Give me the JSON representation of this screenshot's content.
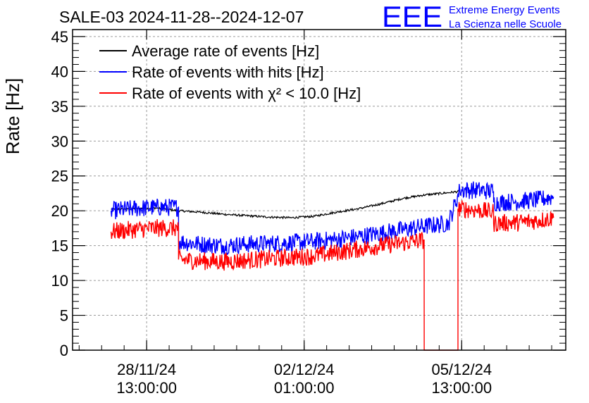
{
  "chart_data": {
    "type": "line",
    "title": "SALE-03 2024-11-28--2024-12-07",
    "ylabel": "Rate [Hz]",
    "xlabel": "",
    "ylim": [
      0,
      46
    ],
    "y_ticks": [
      0,
      5,
      10,
      15,
      20,
      25,
      30,
      35,
      40,
      45
    ],
    "x_ticks": [
      {
        "date": "28/11/24",
        "time": "13:00:00",
        "t": "2024-11-28T13:00:00"
      },
      {
        "date": "02/12/24",
        "time": "01:00:00",
        "t": "2024-12-02T01:00:00"
      },
      {
        "date": "05/12/24",
        "time": "13:00:00",
        "t": "2024-12-05T13:00:00"
      }
    ],
    "xlim": [
      "2024-11-26T21:30:00",
      "2024-12-07T20:30:00"
    ],
    "grid": true,
    "legend_position": "top-left",
    "series": [
      {
        "name": "Average rate of events [Hz]",
        "color": "#000000",
        "x": [
          "2024-11-27T18:00:00",
          "2024-11-28T06:00:00",
          "2024-11-28T18:00:00",
          "2024-11-29T06:00:00",
          "2024-11-29T18:00:00",
          "2024-11-30T06:00:00",
          "2024-11-30T18:00:00",
          "2024-12-01T06:00:00",
          "2024-12-01T18:00:00",
          "2024-12-02T06:00:00",
          "2024-12-02T18:00:00",
          "2024-12-03T06:00:00",
          "2024-12-03T18:00:00",
          "2024-12-04T06:00:00",
          "2024-12-04T18:00:00",
          "2024-12-05T06:00:00",
          "2024-12-05T12:00:00"
        ],
        "values": [
          20.2,
          20.3,
          20.4,
          20.0,
          19.8,
          19.5,
          19.3,
          19.1,
          19.0,
          19.2,
          19.8,
          20.3,
          21.0,
          21.8,
          22.3,
          22.6,
          22.8
        ]
      },
      {
        "name": "Rate of events with hits [Hz]",
        "color": "#0000ff",
        "x": [
          "2024-11-27T18:00:00",
          "2024-11-28T06:00:00",
          "2024-11-28T18:00:00",
          "2024-11-29T06:00:00",
          "2024-11-29T06:01:00",
          "2024-11-29T18:00:00",
          "2024-11-30T06:00:00",
          "2024-11-30T18:00:00",
          "2024-12-01T06:00:00",
          "2024-12-01T18:00:00",
          "2024-12-02T06:00:00",
          "2024-12-02T18:00:00",
          "2024-12-03T06:00:00",
          "2024-12-03T18:00:00",
          "2024-12-04T06:00:00",
          "2024-12-04T18:00:00",
          "2024-12-05T06:00:00",
          "2024-12-05T12:00:00",
          "2024-12-05T18:00:00",
          "2024-12-06T06:00:00",
          "2024-12-06T06:01:00",
          "2024-12-06T18:00:00",
          "2024-12-07T06:00:00",
          "2024-12-07T14:00:00"
        ],
        "values": [
          20.0,
          20.3,
          20.5,
          20.5,
          15.6,
          15.2,
          15.0,
          15.2,
          15.3,
          15.4,
          15.6,
          15.9,
          16.3,
          16.8,
          17.3,
          17.8,
          18.2,
          23.0,
          23.0,
          22.8,
          21.2,
          21.3,
          21.6,
          22.0
        ]
      },
      {
        "name": "Rate of events with χ² < 10.0 [Hz]",
        "color": "#ff0000",
        "x": [
          "2024-11-27T18:00:00",
          "2024-11-28T06:00:00",
          "2024-11-28T18:00:00",
          "2024-11-29T06:00:00",
          "2024-11-29T06:01:00",
          "2024-11-29T18:00:00",
          "2024-11-30T06:00:00",
          "2024-11-30T18:00:00",
          "2024-12-01T06:00:00",
          "2024-12-01T18:00:00",
          "2024-12-02T06:00:00",
          "2024-12-02T18:00:00",
          "2024-12-03T06:00:00",
          "2024-12-03T18:00:00",
          "2024-12-04T06:00:00",
          "2024-12-04T17:00:00",
          "2024-12-04T17:01:00",
          "2024-12-05T11:00:00",
          "2024-12-05T11:01:00",
          "2024-12-05T18:00:00",
          "2024-12-06T06:00:00",
          "2024-12-06T06:01:00",
          "2024-12-06T18:00:00",
          "2024-12-07T06:00:00",
          "2024-12-07T14:00:00"
        ],
        "values": [
          17.0,
          17.3,
          17.5,
          17.5,
          13.0,
          12.8,
          12.7,
          12.9,
          13.1,
          13.3,
          13.5,
          14.0,
          14.5,
          15.0,
          15.4,
          15.8,
          0,
          0,
          20.3,
          20.2,
          19.8,
          18.2,
          18.3,
          18.6,
          19.0
        ]
      }
    ]
  },
  "header": {
    "logo_text": "EEE",
    "org_line1": "Extreme Energy Events",
    "org_line2": "La Scienza nelle Scuole"
  },
  "colors": {
    "axis": "#000000",
    "grid": "#9a9a9a",
    "logo": "#0000ff"
  }
}
